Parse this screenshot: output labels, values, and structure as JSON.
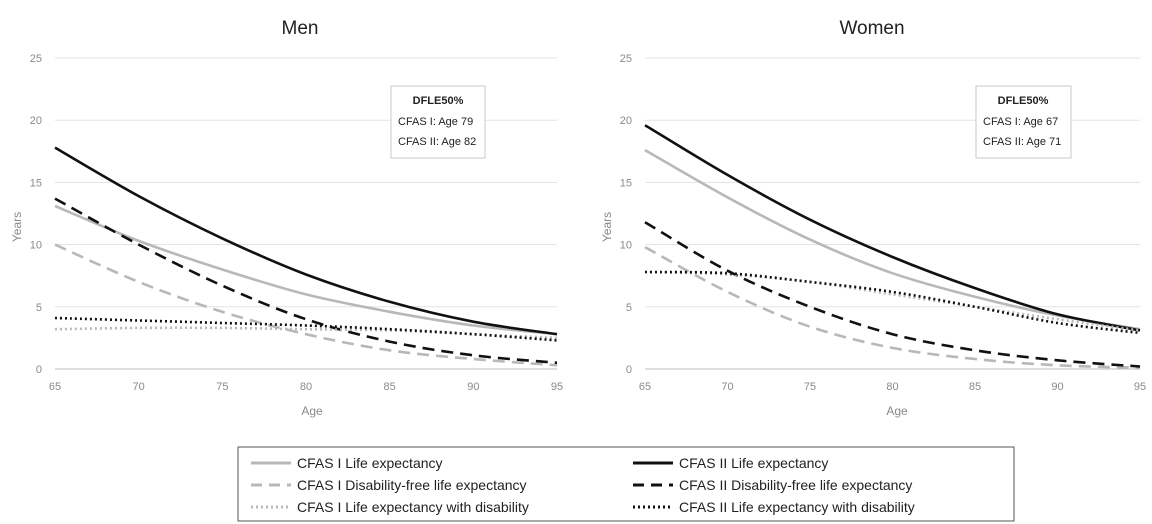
{
  "chart_data": [
    {
      "type": "line",
      "title": "Men",
      "xlabel": "Age",
      "ylabel": "Years",
      "xlim": [
        65,
        95
      ],
      "ylim": [
        0,
        25
      ],
      "x_ticks": [
        "65",
        "70",
        "75",
        "80",
        "85",
        "90",
        "95"
      ],
      "y_ticks": [
        "0",
        "5",
        "10",
        "15",
        "20",
        "25"
      ],
      "grid": "horizontal",
      "x": [
        65,
        70,
        75,
        80,
        85,
        90,
        95
      ],
      "annotation": {
        "title": "DFLE50%",
        "lines": [
          "CFAS I: Age 79",
          "CFAS II: Age 82"
        ]
      },
      "series": [
        {
          "name": "CFAS I Life expectancy",
          "values": [
            13.1,
            10.3,
            8.0,
            6.0,
            4.6,
            3.5,
            2.8
          ]
        },
        {
          "name": "CFAS II Life expectancy",
          "values": [
            17.8,
            13.9,
            10.5,
            7.6,
            5.4,
            3.8,
            2.8
          ]
        },
        {
          "name": "CFAS I Disability-free life expectancy",
          "values": [
            10.0,
            7.0,
            4.6,
            2.8,
            1.5,
            0.8,
            0.3
          ]
        },
        {
          "name": "CFAS II Disability-free life expectancy",
          "values": [
            13.7,
            10.0,
            6.7,
            4.0,
            2.2,
            1.1,
            0.5
          ]
        },
        {
          "name": "CFAS I Life expectancy with disability",
          "values": [
            3.2,
            3.3,
            3.3,
            3.2,
            3.1,
            2.8,
            2.5
          ]
        },
        {
          "name": "CFAS II Life expectancy with disability",
          "values": [
            4.1,
            3.9,
            3.7,
            3.5,
            3.2,
            2.8,
            2.3
          ]
        }
      ]
    },
    {
      "type": "line",
      "title": "Women",
      "xlabel": "Age",
      "ylabel": "Years",
      "xlim": [
        65,
        95
      ],
      "ylim": [
        0,
        25
      ],
      "x_ticks": [
        "65",
        "70",
        "75",
        "80",
        "85",
        "90",
        "95"
      ],
      "y_ticks": [
        "0",
        "5",
        "10",
        "15",
        "20",
        "25"
      ],
      "grid": "horizontal",
      "x": [
        65,
        70,
        75,
        80,
        85,
        90,
        95
      ],
      "annotation": {
        "title": "DFLE50%",
        "lines": [
          "CFAS I: Age 67",
          "CFAS II: Age 71"
        ]
      },
      "series": [
        {
          "name": "CFAS I Life expectancy",
          "values": [
            17.6,
            13.8,
            10.4,
            7.7,
            5.8,
            4.3,
            3.2
          ]
        },
        {
          "name": "CFAS II Life expectancy",
          "values": [
            19.6,
            15.6,
            12.0,
            9.0,
            6.5,
            4.4,
            3.1
          ]
        },
        {
          "name": "CFAS I Disability-free life expectancy",
          "values": [
            9.8,
            6.2,
            3.4,
            1.7,
            0.8,
            0.3,
            0.1
          ]
        },
        {
          "name": "CFAS II Disability-free life expectancy",
          "values": [
            11.8,
            7.9,
            5.0,
            2.8,
            1.5,
            0.7,
            0.2
          ]
        },
        {
          "name": "CFAS I Life expectancy with disability",
          "values": [
            7.8,
            7.6,
            7.0,
            6.0,
            5.0,
            4.0,
            3.1
          ]
        },
        {
          "name": "CFAS II Life expectancy with disability",
          "values": [
            7.8,
            7.7,
            7.0,
            6.2,
            5.0,
            3.7,
            2.9
          ]
        }
      ]
    }
  ],
  "legend": [
    {
      "label": "CFAS I Life expectancy",
      "color": "#b8b8b8",
      "style": "solid"
    },
    {
      "label": "CFAS II Life expectancy",
      "color": "#111111",
      "style": "solid"
    },
    {
      "label": "CFAS I Disability-free life expectancy",
      "color": "#b8b8b8",
      "style": "dashed"
    },
    {
      "label": "CFAS II Disability-free life expectancy",
      "color": "#111111",
      "style": "dashed"
    },
    {
      "label": "CFAS I Life expectancy with disability",
      "color": "#b8b8b8",
      "style": "dotted"
    },
    {
      "label": "CFAS II Life expectancy with disability",
      "color": "#111111",
      "style": "dotted"
    }
  ]
}
